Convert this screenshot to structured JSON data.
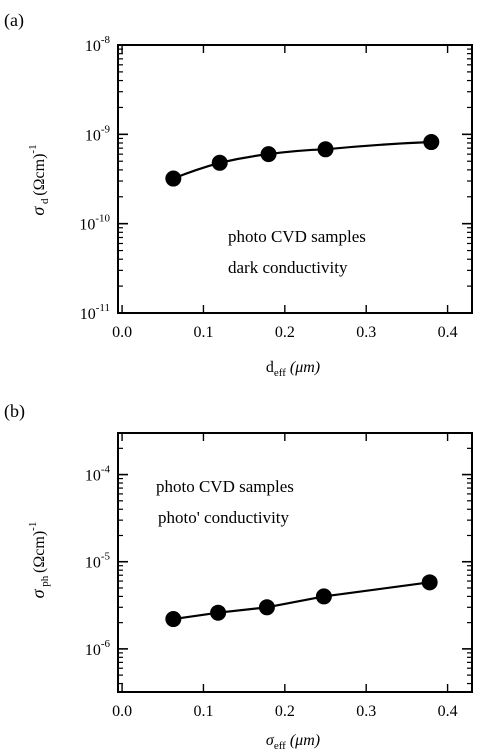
{
  "chart_data": [
    {
      "panel_label": "(a)",
      "type": "line",
      "y_scale": "log",
      "ylabel_symbol": "σ",
      "ylabel_sub": "d",
      "ylabel_unit": "(Ωcm)",
      "ylabel_sup": "-1",
      "xlabel_main": "d",
      "xlabel_sub": "eff",
      "xlabel_unit": "(μm)",
      "x_ticks": [
        "0.0",
        "0.1",
        "0.2",
        "0.3",
        "0.4"
      ],
      "xlim": [
        -0.005,
        0.43
      ],
      "ylim": [
        1e-11,
        1e-08
      ],
      "y_ticks": [
        {
          "value": 1e-08,
          "base": "10",
          "exp": "-8"
        },
        {
          "value": 1e-09,
          "base": "10",
          "exp": "-9"
        },
        {
          "value": 1e-10,
          "base": "10",
          "exp": "-10"
        },
        {
          "value": 1e-11,
          "base": "10",
          "exp": "-11"
        }
      ],
      "annotations": [
        "photo CVD samples",
        "dark conductivity"
      ],
      "grid": false,
      "series": [
        {
          "x": [
            0.063,
            0.12,
            0.18,
            0.25,
            0.38
          ],
          "y": [
            3.2e-10,
            4.8e-10,
            6e-10,
            6.8e-10,
            8.2e-10
          ]
        }
      ]
    },
    {
      "panel_label": "(b)",
      "type": "line",
      "y_scale": "log",
      "ylabel_symbol": "σ",
      "ylabel_sub": "ph",
      "ylabel_unit": "(Ωcm)",
      "ylabel_sup": "-1",
      "xlabel_main": "σ",
      "xlabel_sub": "eff",
      "xlabel_unit": "(μm)",
      "x_ticks": [
        "0.0",
        "0.1",
        "0.2",
        "0.3",
        "0.4"
      ],
      "xlim": [
        -0.005,
        0.43
      ],
      "ylim": [
        3.2e-07,
        0.0003
      ],
      "y_ticks": [
        {
          "value": 0.0001,
          "base": "10",
          "exp": "-4"
        },
        {
          "value": 1e-05,
          "base": "10",
          "exp": "-5"
        },
        {
          "value": 1e-06,
          "base": "10",
          "exp": "-6"
        }
      ],
      "annotations": [
        "photo CVD samples",
        "photo' conductivity"
      ],
      "grid": false,
      "series": [
        {
          "x": [
            0.063,
            0.118,
            0.178,
            0.248,
            0.378
          ],
          "y": [
            2.2e-06,
            2.6e-06,
            3e-06,
            4e-06,
            5.8e-06
          ]
        }
      ]
    }
  ]
}
